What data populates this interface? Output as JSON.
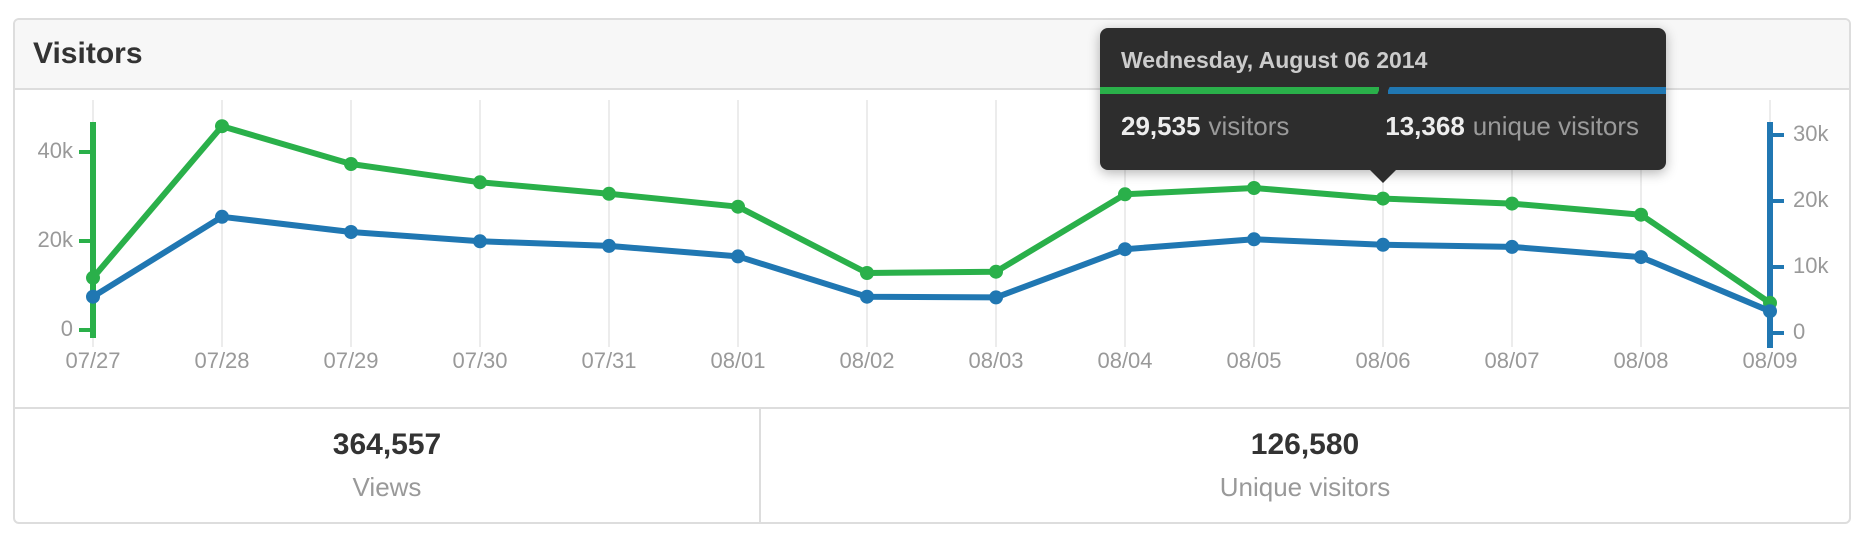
{
  "panel": {
    "title": "Visitors"
  },
  "colors": {
    "visitors_green": "#2ab04a",
    "unique_blue": "#2077b2",
    "grid": "#ececec",
    "axis_label": "#999999",
    "panel_border": "#dddddd",
    "header_bg": "#f7f7f7",
    "tooltip_bg": "#2d2d2d"
  },
  "tooltip": {
    "date": "Wednesday, August 06 2014",
    "visitors_value": "29,535",
    "visitors_label": "visitors",
    "unique_value": "13,368",
    "unique_label": "unique visitors"
  },
  "summary": {
    "views": {
      "value": "364,557",
      "label": "Views"
    },
    "unique": {
      "value": "126,580",
      "label": "Unique visitors"
    }
  },
  "chart_data": {
    "type": "line",
    "x": [
      "07/27",
      "07/28",
      "07/29",
      "07/30",
      "07/31",
      "08/01",
      "08/02",
      "08/03",
      "08/04",
      "08/05",
      "08/06",
      "08/07",
      "08/08",
      "08/09"
    ],
    "series": [
      {
        "name": "visitors",
        "axis": "left",
        "color": "#2ab04a",
        "values": [
          11722,
          45800,
          37300,
          33200,
          30600,
          27700,
          12800,
          13100,
          30500,
          31900,
          29535,
          28400,
          25900,
          6100
        ]
      },
      {
        "name": "unique visitors",
        "axis": "right",
        "color": "#2077b2",
        "values": [
          5500,
          17600,
          15300,
          13900,
          13200,
          11600,
          5500,
          5400,
          12700,
          14200,
          13368,
          13050,
          11500,
          3300
        ]
      }
    ],
    "left_axis": {
      "tick_labels": [
        "0",
        "20k",
        "40k"
      ],
      "tick_values": [
        0,
        20000,
        40000
      ],
      "max": 47000
    },
    "right_axis": {
      "tick_labels": [
        "0",
        "10k",
        "20k",
        "30k"
      ],
      "tick_values": [
        0,
        10000,
        20000,
        30000
      ],
      "max": 31000
    },
    "grid": "vertical",
    "legend": "none",
    "hovered_index": 10,
    "hovered_x": "08/06"
  }
}
